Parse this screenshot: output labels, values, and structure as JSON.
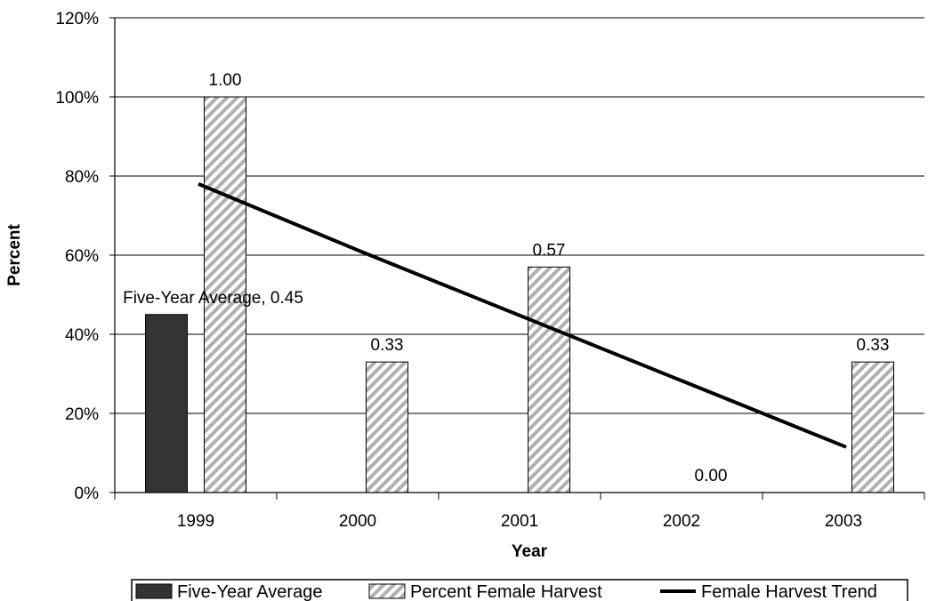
{
  "chart_data": {
    "type": "bar",
    "categories": [
      "1999",
      "2000",
      "2001",
      "2002",
      "2003"
    ],
    "xlabel": "Year",
    "ylabel": "Percent",
    "ylim": [
      0,
      1.2
    ],
    "yticks": [
      "0%",
      "20%",
      "40%",
      "60%",
      "80%",
      "100%",
      "120%"
    ],
    "grid": true,
    "series": [
      {
        "name": "Five-Year Average",
        "kind": "bar",
        "color": "#333333",
        "values": [
          0.45,
          null,
          null,
          null,
          null
        ],
        "data_labels": [
          "Five-Year Average, 0.45",
          "",
          "",
          "",
          ""
        ]
      },
      {
        "name": "Percent Female Harvest",
        "kind": "bar",
        "pattern": "diagonal-hatch",
        "color": "#b0b0b0",
        "values": [
          1.0,
          0.33,
          0.57,
          0.0,
          0.33
        ],
        "data_labels": [
          "1.00",
          "0.33",
          "0.57",
          "0.00",
          "0.33"
        ]
      },
      {
        "name": "Female Harvest Trend",
        "kind": "line",
        "color": "#000000",
        "values": [
          0.78,
          0.61,
          0.445,
          0.28,
          0.115
        ]
      }
    ],
    "legend_position": "bottom"
  }
}
